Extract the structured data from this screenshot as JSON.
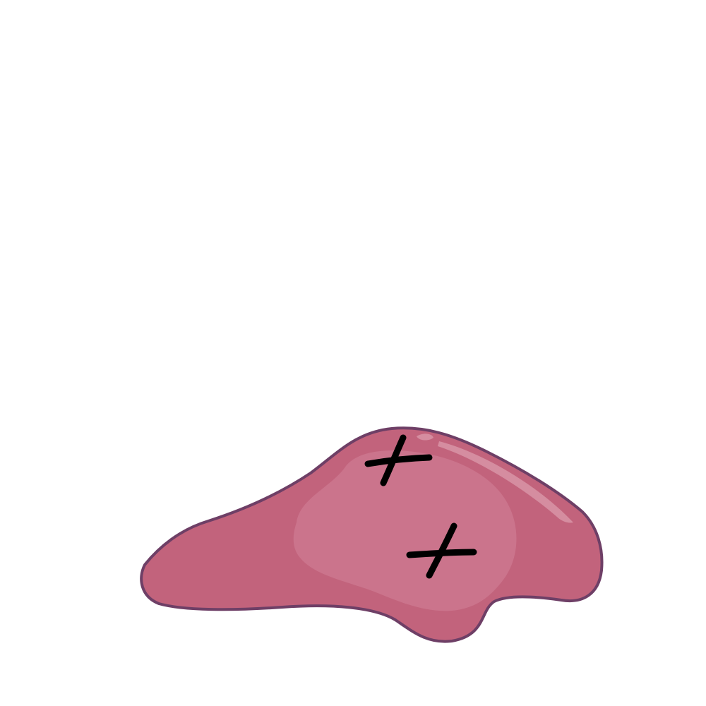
{
  "scene": {
    "subject": "pink-blob-with-x-marks",
    "background_color": "#ffffff",
    "colors": {
      "blob_fill": "#c2637c",
      "blob_outline": "#6e3f66",
      "blob_inner_highlight": "#cb748c",
      "blob_shine": "#d58da0",
      "mark_color": "#000000"
    },
    "marks_count": 2
  }
}
